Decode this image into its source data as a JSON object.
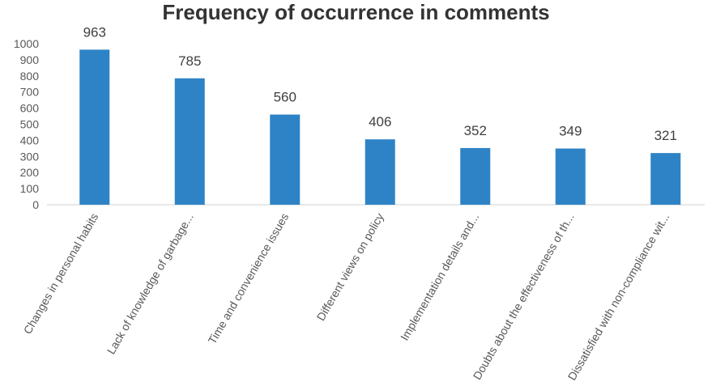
{
  "chart_data": {
    "type": "bar",
    "title": "Frequency of occurrence in comments",
    "xlabel": "",
    "ylabel": "",
    "categories": [
      "Changes in personal habits",
      "Lack of knowledge of garbage...",
      "Time and convenience issues",
      "Different views on policy",
      "Implementation details and...",
      "Doubts about the effectiveness of th...",
      "Dissatisfied with non-compliance wit..."
    ],
    "values": [
      963,
      785,
      560,
      406,
      352,
      349,
      321
    ],
    "ylim": [
      0,
      1000
    ],
    "yticks": [
      0,
      100,
      200,
      300,
      400,
      500,
      600,
      700,
      800,
      900,
      1000
    ],
    "grid": false,
    "legend": "none",
    "bar_color": "#2E83C6"
  }
}
